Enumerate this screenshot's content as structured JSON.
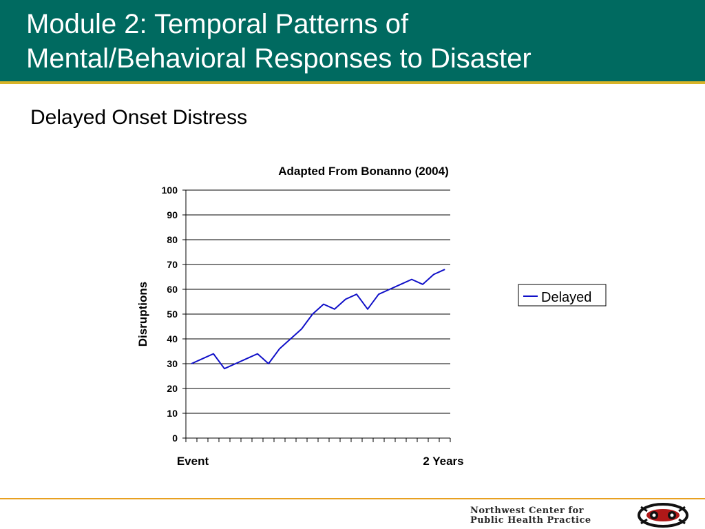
{
  "slide": {
    "title_line1": "Module 2: Temporal Patterns of",
    "title_line2": "Mental/Behavioral Responses to Disaster",
    "subtitle": "Delayed Onset Distress"
  },
  "colors": {
    "header": "#006a60",
    "header_accent": "#d8b428",
    "footer_accent": "#e8a020",
    "series": "#1010c8"
  },
  "chart_data": {
    "type": "line",
    "title": "Adapted From Bonanno (2004)",
    "ylabel": "Disruptions",
    "xlabel": "",
    "x_start_label": "Event",
    "x_end_label": "2 Years",
    "ylim": [
      0,
      100
    ],
    "yticks": [
      0,
      10,
      20,
      30,
      40,
      50,
      60,
      70,
      80,
      90,
      100
    ],
    "grid": true,
    "legend_position": "right",
    "series": [
      {
        "name": "Delayed",
        "color": "#1010c8",
        "values": [
          30,
          32,
          34,
          28,
          30,
          32,
          34,
          30,
          36,
          40,
          44,
          50,
          54,
          52,
          56,
          58,
          52,
          58,
          60,
          62,
          64,
          62,
          66,
          68
        ]
      }
    ]
  },
  "footer": {
    "org_line1": "Northwest Center for",
    "org_line2": "Public Health Practice",
    "logo_icon": "salmon-emblem-icon"
  }
}
